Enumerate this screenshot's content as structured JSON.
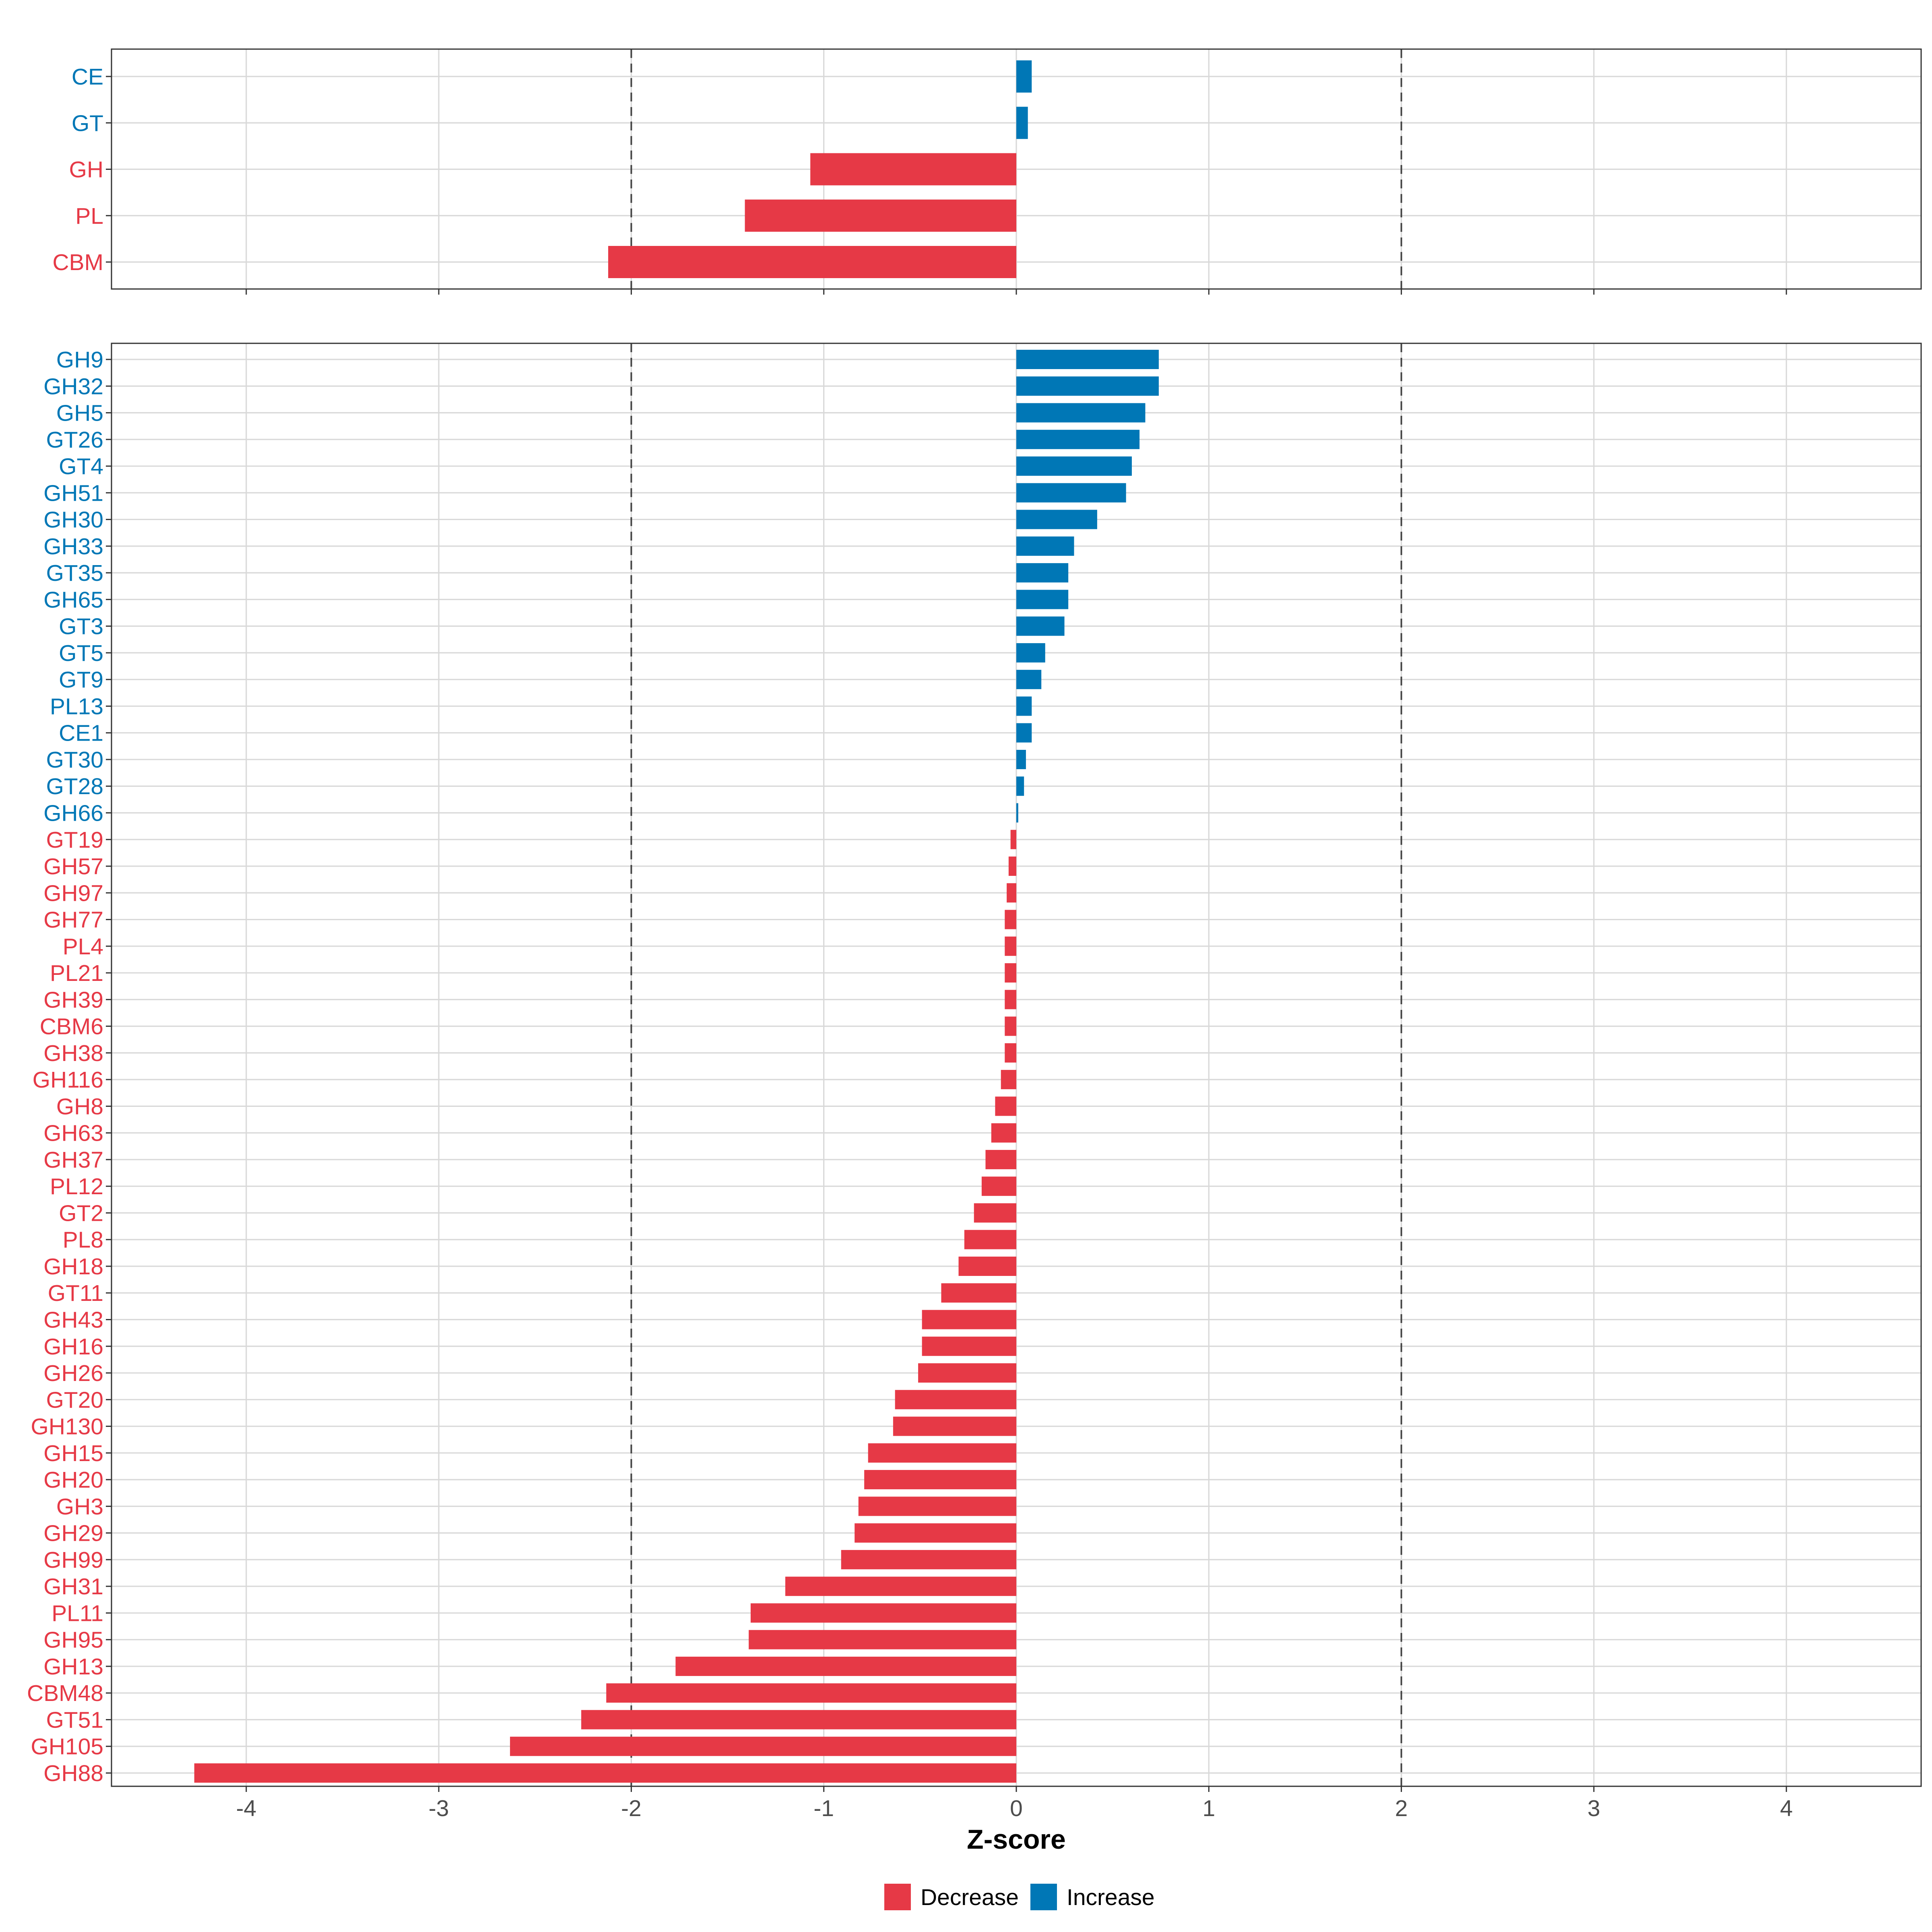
{
  "chart_data": {
    "type": "bar",
    "orientation": "horizontal",
    "xlabel": "Z-score",
    "xlim": [
      -4.7,
      4.7
    ],
    "xticks": [
      -4,
      -3,
      -2,
      -1,
      0,
      1,
      2,
      3,
      4
    ],
    "reference_lines": [
      -2,
      2
    ],
    "colors": {
      "Decrease": "#E63946",
      "Increase": "#0077B6"
    },
    "legend": {
      "position": "bottom",
      "entries": [
        {
          "label": "Decrease",
          "color": "#E63946"
        },
        {
          "label": "Increase",
          "color": "#0077B6"
        }
      ]
    },
    "panels": [
      {
        "name": "classes",
        "categories": [
          "CE",
          "GT",
          "GH",
          "PL",
          "CBM"
        ],
        "values": [
          0.08,
          0.06,
          -1.07,
          -1.41,
          -2.12
        ]
      },
      {
        "name": "families",
        "categories": [
          "GH9",
          "GH32",
          "GH5",
          "GT26",
          "GT4",
          "GH51",
          "GH30",
          "GH33",
          "GT35",
          "GH65",
          "GT3",
          "GT5",
          "GT9",
          "PL13",
          "CE1",
          "GT30",
          "GT28",
          "GH66",
          "GT19",
          "GH57",
          "GH97",
          "GH77",
          "PL4",
          "PL21",
          "GH39",
          "CBM6",
          "GH38",
          "GH116",
          "GH8",
          "GH63",
          "GH37",
          "PL12",
          "GT2",
          "PL8",
          "GH18",
          "GT11",
          "GH43",
          "GH16",
          "GH26",
          "GT20",
          "GH130",
          "GH15",
          "GH20",
          "GH3",
          "GH29",
          "GH99",
          "GH31",
          "PL11",
          "GH95",
          "GH13",
          "CBM48",
          "GT51",
          "GH105",
          "GH88"
        ],
        "values": [
          0.74,
          0.74,
          0.67,
          0.64,
          0.6,
          0.57,
          0.42,
          0.3,
          0.27,
          0.27,
          0.25,
          0.15,
          0.13,
          0.08,
          0.08,
          0.05,
          0.04,
          0.01,
          -0.03,
          -0.04,
          -0.05,
          -0.06,
          -0.06,
          -0.06,
          -0.06,
          -0.06,
          -0.06,
          -0.08,
          -0.11,
          -0.13,
          -0.16,
          -0.18,
          -0.22,
          -0.27,
          -0.3,
          -0.39,
          -0.49,
          -0.49,
          -0.51,
          -0.63,
          -0.64,
          -0.77,
          -0.79,
          -0.82,
          -0.84,
          -0.91,
          -1.2,
          -1.38,
          -1.39,
          -1.77,
          -2.13,
          -2.26,
          -2.63,
          -4.27
        ]
      }
    ]
  }
}
